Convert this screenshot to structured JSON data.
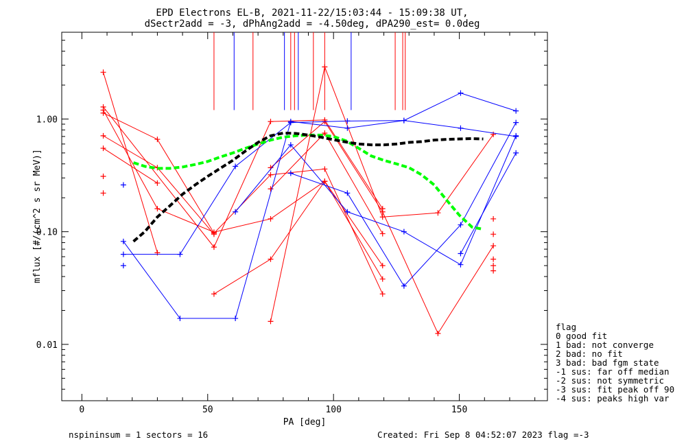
{
  "header": {
    "title_line1": "EPD Electrons EL-B, 2021-11-22/15:03:44 - 15:09:38 UT,",
    "title_line2": "dSectr2add = -3, dPhAng2add = -4.50deg, dPA290_est=   0.0deg"
  },
  "footer": {
    "left": "nspininsum =  1  sectors = 16",
    "right": "Created: Fri Sep  8 04:52:07 2023   flag =-3"
  },
  "legend": {
    "title": "flag",
    "items": [
      " 0 good fit",
      " 1 bad: not converge",
      " 2 bad: no fit",
      " 3 bad: bad fgm state",
      "-1 sus: far off median",
      "-2 sus: not symmetric",
      "-3 sus: fit peak off 90",
      "-4 sus: peaks high var"
    ]
  },
  "colors": {
    "red": "#ff0000",
    "blue": "#0000ff",
    "black": "#000000",
    "green": "#00ff00"
  },
  "chart_data": {
    "type": "line",
    "xlabel": "PA [deg]",
    "ylabel": "mflux [#/(cm^2 s sr MeV)]",
    "xlim": [
      -8,
      185
    ],
    "ylim_log10": [
      -2.5,
      0.77
    ],
    "y_log": true,
    "xticks": [
      0,
      50,
      100,
      150
    ],
    "xtick_labels": [
      "0",
      "50",
      "100",
      "150"
    ],
    "yticks": [
      0.01,
      0.1,
      1.0
    ],
    "ytick_labels": [
      "0.01",
      "0.10",
      "1.00"
    ],
    "vlines": {
      "y_bottom": 1.2,
      "red": [
        52.5,
        68,
        83,
        84.5,
        92,
        96.5,
        124.5,
        127.5,
        128.5
      ],
      "blue": [
        60.5,
        80.5,
        86,
        107
      ]
    },
    "red_series": [
      [
        [
          8.5,
          2.6
        ],
        [
          30,
          0.065
        ]
      ],
      [
        [
          8.5,
          1.28
        ],
        [
          52.5,
          0.073
        ],
        [
          75,
          0.95
        ],
        [
          96.5,
          0.98
        ],
        [
          119.5,
          0.16
        ]
      ],
      [
        [
          8.5,
          1.2
        ],
        [
          30,
          0.16
        ],
        [
          52.5,
          0.099
        ],
        [
          75,
          0.13
        ],
        [
          96.5,
          0.28
        ],
        [
          119.5,
          0.05
        ]
      ],
      [
        [
          8.5,
          1.13
        ],
        [
          30,
          0.66
        ],
        [
          52.5,
          0.097
        ],
        [
          75,
          0.32
        ],
        [
          96.5,
          0.36
        ],
        [
          119.5,
          0.028
        ]
      ],
      [
        [
          8.5,
          0.71
        ],
        [
          30,
          0.37
        ],
        [
          52.5,
          0.095
        ]
      ],
      [
        [
          8.5,
          0.55
        ],
        [
          30,
          0.27
        ]
      ],
      [
        [
          52.5,
          0.028
        ],
        [
          75,
          0.057
        ],
        [
          96.5,
          0.28
        ],
        [
          119.5,
          0.038
        ]
      ],
      [
        [
          75,
          0.016
        ],
        [
          96.5,
          2.9
        ],
        [
          119.5,
          0.135
        ],
        [
          141.5,
          0.147
        ],
        [
          163.5,
          0.73
        ]
      ],
      [
        [
          75,
          0.37
        ],
        [
          96.5,
          0.95
        ],
        [
          119.5,
          0.15
        ],
        [
          141.5,
          0.0125
        ],
        [
          163.5,
          0.075
        ]
      ],
      [
        [
          75,
          0.24
        ],
        [
          96.5,
          0.75
        ],
        [
          119.5,
          0.096
        ]
      ]
    ],
    "red_points": [
      [
        8.5,
        0.31
      ],
      [
        8.5,
        0.22
      ],
      [
        163.5,
        0.13
      ],
      [
        163.5,
        0.095
      ],
      [
        163.5,
        0.057
      ],
      [
        163.5,
        0.05
      ],
      [
        163.5,
        0.045
      ]
    ],
    "blue_series": [
      [
        [
          16.5,
          0.082
        ],
        [
          39,
          0.017
        ],
        [
          61,
          0.017
        ],
        [
          83,
          0.95
        ],
        [
          105.5,
          0.83
        ],
        [
          128,
          0.97
        ],
        [
          150.5,
          1.7
        ],
        [
          172.5,
          1.18
        ]
      ],
      [
        [
          16.5,
          0.063
        ],
        [
          39,
          0.063
        ],
        [
          61,
          0.38
        ],
        [
          83,
          0.93
        ],
        [
          105.5,
          0.96
        ],
        [
          128,
          0.97
        ],
        [
          150.5,
          0.83
        ],
        [
          172.5,
          0.7
        ]
      ],
      [
        [
          61,
          0.15
        ],
        [
          83,
          0.59
        ],
        [
          105.5,
          0.15
        ],
        [
          128,
          0.1
        ],
        [
          150.5,
          0.051
        ],
        [
          172.5,
          0.71
        ]
      ],
      [
        [
          83,
          0.33
        ],
        [
          105.5,
          0.22
        ],
        [
          128,
          0.033
        ],
        [
          150.5,
          0.115
        ],
        [
          172.5,
          0.93
        ]
      ],
      [
        [
          150.5,
          0.064
        ],
        [
          172.5,
          0.5
        ]
      ]
    ],
    "blue_points": [
      [
        16.5,
        0.26
      ],
      [
        16.5,
        0.05
      ]
    ],
    "black_fit": [
      [
        20.5,
        0.082
      ],
      [
        25,
        0.1
      ],
      [
        30,
        0.135
      ],
      [
        35,
        0.17
      ],
      [
        40,
        0.215
      ],
      [
        45,
        0.26
      ],
      [
        50,
        0.31
      ],
      [
        55,
        0.365
      ],
      [
        60,
        0.43
      ],
      [
        65,
        0.52
      ],
      [
        70,
        0.62
      ],
      [
        75,
        0.71
      ],
      [
        80,
        0.75
      ],
      [
        85,
        0.745
      ],
      [
        90,
        0.72
      ],
      [
        95,
        0.69
      ],
      [
        100,
        0.655
      ],
      [
        105,
        0.625
      ],
      [
        110,
        0.6
      ],
      [
        115,
        0.59
      ],
      [
        120,
        0.59
      ],
      [
        125,
        0.6
      ],
      [
        130,
        0.62
      ],
      [
        135,
        0.63
      ],
      [
        140,
        0.65
      ],
      [
        145,
        0.66
      ],
      [
        150,
        0.665
      ],
      [
        155,
        0.67
      ],
      [
        159.5,
        0.665
      ]
    ],
    "green_fit": [
      [
        20.5,
        0.41
      ],
      [
        25,
        0.38
      ],
      [
        30,
        0.365
      ],
      [
        35,
        0.365
      ],
      [
        40,
        0.375
      ],
      [
        45,
        0.395
      ],
      [
        50,
        0.42
      ],
      [
        55,
        0.46
      ],
      [
        60,
        0.5
      ],
      [
        65,
        0.55
      ],
      [
        70,
        0.6
      ],
      [
        75,
        0.65
      ],
      [
        80,
        0.69
      ],
      [
        85,
        0.71
      ],
      [
        90,
        0.72
      ],
      [
        95,
        0.72
      ],
      [
        100,
        0.7
      ],
      [
        105,
        0.64
      ],
      [
        110,
        0.55
      ],
      [
        115,
        0.47
      ],
      [
        120,
        0.43
      ],
      [
        125,
        0.4
      ],
      [
        130,
        0.37
      ],
      [
        135,
        0.32
      ],
      [
        140,
        0.26
      ],
      [
        145,
        0.19
      ],
      [
        150,
        0.14
      ],
      [
        155,
        0.11
      ],
      [
        159.5,
        0.105
      ]
    ]
  }
}
